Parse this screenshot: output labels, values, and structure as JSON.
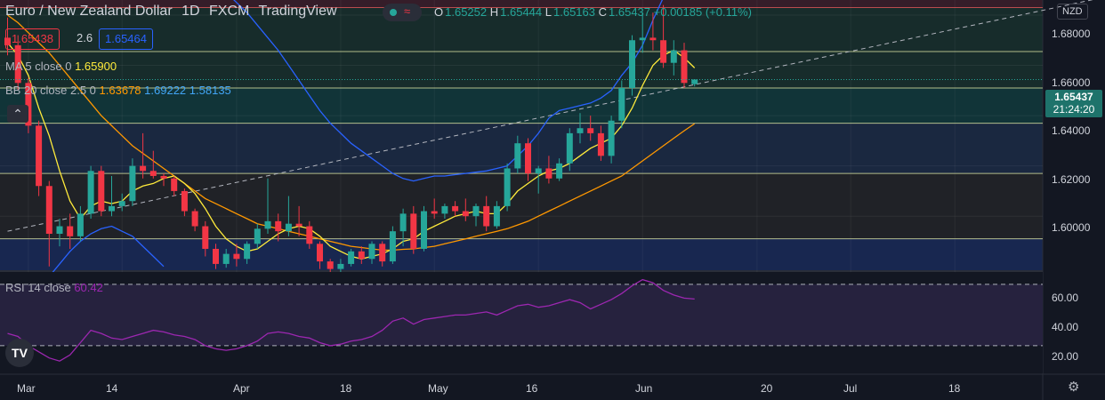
{
  "header": {
    "instrument": "Euro / New Zealand Dollar",
    "timeframe": "1D",
    "broker": "FXCM",
    "platform": "TradingView",
    "ohlc": {
      "o_label": "O",
      "o": "1.65252",
      "h_label": "H",
      "h": "1.65444",
      "l_label": "L",
      "l": "1.65163",
      "c_label": "C",
      "c": "1.65437",
      "change": "+0.00185 (+0.11%)"
    }
  },
  "trade": {
    "sell": "1.65438",
    "spread": "2.6",
    "buy": "1.65464"
  },
  "indicators": {
    "ma_label": "MA 5 close 0",
    "ma_value": "1.65900",
    "bb_label": "BB 20 close 2.5 0",
    "bb_basis": "1.63678",
    "bb_upper": "1.69222",
    "bb_lower": "1.58135",
    "rsi_label": "RSI 14 close",
    "rsi_value": "60.42"
  },
  "price_axis": {
    "currency": "NZD",
    "labels": [
      "1.68000",
      "1.66000",
      "1.64000",
      "1.62000",
      "1.60000"
    ],
    "last_price": "1.65437",
    "countdown": "21:24:20"
  },
  "rsi_axis": {
    "labels": [
      "60.00",
      "40.00",
      "20.00"
    ]
  },
  "time_axis": {
    "labels": [
      "Mar",
      "14",
      "Apr",
      "18",
      "May",
      "16",
      "Jun",
      "20",
      "Jul",
      "18"
    ]
  },
  "logo_text": "TV",
  "colors": {
    "background": "#131722",
    "up": "#26a69a",
    "down": "#f23645",
    "ma": "#ffeb3b",
    "bb_basis": "#ff9800",
    "bb_band": "#2962ff",
    "rsi": "#9c27b0",
    "zone_red": "#3c1e2a",
    "zone_green": "#19302d",
    "zone_teal": "#123a3c",
    "zone_blue": "#1c2c45",
    "zone_gray": "#232428",
    "zone_navy": "#1a2a58"
  },
  "chart_data": {
    "type": "candlestick",
    "title": "Euro / New Zealand Dollar · 1D · FXCM",
    "ylim": [
      1.5785,
      1.686
    ],
    "yticks": [
      1.6,
      1.62,
      1.64,
      1.66,
      1.68
    ],
    "zones": [
      {
        "from": 1.683,
        "to": 1.686,
        "color": "zone_red"
      },
      {
        "from": 1.6655,
        "to": 1.683,
        "color": "zone_green"
      },
      {
        "from": 1.651,
        "to": 1.6655,
        "color": "zone_green"
      },
      {
        "from": 1.637,
        "to": 1.651,
        "color": "zone_teal"
      },
      {
        "from": 1.617,
        "to": 1.637,
        "color": "zone_blue"
      },
      {
        "from": 1.591,
        "to": 1.617,
        "color": "zone_gray"
      },
      {
        "from": 1.5785,
        "to": 1.591,
        "color": "zone_navy"
      }
    ],
    "level_lines": [
      1.683,
      1.6655,
      1.651,
      1.637,
      1.617,
      1.591
    ],
    "trendline": {
      "start": [
        0,
        1.594
      ],
      "end": [
        105,
        1.6868
      ]
    },
    "candles": [
      {
        "o": 1.671,
        "h": 1.679,
        "l": 1.664,
        "c": 1.668
      },
      {
        "o": 1.668,
        "h": 1.672,
        "l": 1.65,
        "c": 1.653
      },
      {
        "o": 1.653,
        "h": 1.655,
        "l": 1.633,
        "c": 1.636
      },
      {
        "o": 1.636,
        "h": 1.638,
        "l": 1.608,
        "c": 1.612
      },
      {
        "o": 1.612,
        "h": 1.614,
        "l": 1.58,
        "c": 1.593
      },
      {
        "o": 1.593,
        "h": 1.599,
        "l": 1.588,
        "c": 1.596
      },
      {
        "o": 1.596,
        "h": 1.601,
        "l": 1.587,
        "c": 1.592
      },
      {
        "o": 1.592,
        "h": 1.604,
        "l": 1.59,
        "c": 1.601
      },
      {
        "o": 1.601,
        "h": 1.62,
        "l": 1.599,
        "c": 1.618
      },
      {
        "o": 1.618,
        "h": 1.62,
        "l": 1.6,
        "c": 1.602
      },
      {
        "o": 1.602,
        "h": 1.616,
        "l": 1.6,
        "c": 1.604
      },
      {
        "o": 1.604,
        "h": 1.609,
        "l": 1.602,
        "c": 1.606
      },
      {
        "o": 1.606,
        "h": 1.623,
        "l": 1.604,
        "c": 1.62
      },
      {
        "o": 1.62,
        "h": 1.633,
        "l": 1.615,
        "c": 1.618
      },
      {
        "o": 1.618,
        "h": 1.626,
        "l": 1.615,
        "c": 1.616
      },
      {
        "o": 1.616,
        "h": 1.617,
        "l": 1.612,
        "c": 1.615
      },
      {
        "o": 1.615,
        "h": 1.616,
        "l": 1.608,
        "c": 1.61
      },
      {
        "o": 1.61,
        "h": 1.611,
        "l": 1.6,
        "c": 1.602
      },
      {
        "o": 1.602,
        "h": 1.603,
        "l": 1.594,
        "c": 1.596
      },
      {
        "o": 1.596,
        "h": 1.598,
        "l": 1.584,
        "c": 1.587
      },
      {
        "o": 1.587,
        "h": 1.589,
        "l": 1.579,
        "c": 1.581
      },
      {
        "o": 1.581,
        "h": 1.587,
        "l": 1.5795,
        "c": 1.585
      },
      {
        "o": 1.585,
        "h": 1.589,
        "l": 1.58,
        "c": 1.583
      },
      {
        "o": 1.583,
        "h": 1.59,
        "l": 1.581,
        "c": 1.589
      },
      {
        "o": 1.589,
        "h": 1.597,
        "l": 1.587,
        "c": 1.595
      },
      {
        "o": 1.595,
        "h": 1.615,
        "l": 1.593,
        "c": 1.598
      },
      {
        "o": 1.598,
        "h": 1.601,
        "l": 1.59,
        "c": 1.594
      },
      {
        "o": 1.594,
        "h": 1.608,
        "l": 1.592,
        "c": 1.597
      },
      {
        "o": 1.597,
        "h": 1.604,
        "l": 1.592,
        "c": 1.596
      },
      {
        "o": 1.596,
        "h": 1.598,
        "l": 1.587,
        "c": 1.589
      },
      {
        "o": 1.589,
        "h": 1.59,
        "l": 1.579,
        "c": 1.582
      },
      {
        "o": 1.582,
        "h": 1.583,
        "l": 1.576,
        "c": 1.579
      },
      {
        "o": 1.579,
        "h": 1.583,
        "l": 1.577,
        "c": 1.581
      },
      {
        "o": 1.581,
        "h": 1.587,
        "l": 1.58,
        "c": 1.586
      },
      {
        "o": 1.586,
        "h": 1.588,
        "l": 1.581,
        "c": 1.583
      },
      {
        "o": 1.583,
        "h": 1.59,
        "l": 1.581,
        "c": 1.589
      },
      {
        "o": 1.589,
        "h": 1.59,
        "l": 1.58,
        "c": 1.582
      },
      {
        "o": 1.582,
        "h": 1.596,
        "l": 1.581,
        "c": 1.594
      },
      {
        "o": 1.594,
        "h": 1.603,
        "l": 1.588,
        "c": 1.601
      },
      {
        "o": 1.601,
        "h": 1.604,
        "l": 1.585,
        "c": 1.587
      },
      {
        "o": 1.587,
        "h": 1.604,
        "l": 1.586,
        "c": 1.602
      },
      {
        "o": 1.602,
        "h": 1.607,
        "l": 1.599,
        "c": 1.601
      },
      {
        "o": 1.601,
        "h": 1.605,
        "l": 1.599,
        "c": 1.604
      },
      {
        "o": 1.604,
        "h": 1.606,
        "l": 1.6,
        "c": 1.602
      },
      {
        "o": 1.602,
        "h": 1.607,
        "l": 1.598,
        "c": 1.6
      },
      {
        "o": 1.6,
        "h": 1.605,
        "l": 1.596,
        "c": 1.604
      },
      {
        "o": 1.604,
        "h": 1.608,
        "l": 1.594,
        "c": 1.596
      },
      {
        "o": 1.596,
        "h": 1.606,
        "l": 1.595,
        "c": 1.604
      },
      {
        "o": 1.604,
        "h": 1.621,
        "l": 1.602,
        "c": 1.619
      },
      {
        "o": 1.619,
        "h": 1.632,
        "l": 1.617,
        "c": 1.629
      },
      {
        "o": 1.629,
        "h": 1.631,
        "l": 1.614,
        "c": 1.617
      },
      {
        "o": 1.617,
        "h": 1.62,
        "l": 1.609,
        "c": 1.619
      },
      {
        "o": 1.619,
        "h": 1.624,
        "l": 1.613,
        "c": 1.615
      },
      {
        "o": 1.615,
        "h": 1.623,
        "l": 1.614,
        "c": 1.621
      },
      {
        "o": 1.621,
        "h": 1.635,
        "l": 1.618,
        "c": 1.633
      },
      {
        "o": 1.633,
        "h": 1.641,
        "l": 1.629,
        "c": 1.635
      },
      {
        "o": 1.635,
        "h": 1.64,
        "l": 1.63,
        "c": 1.633
      },
      {
        "o": 1.633,
        "h": 1.636,
        "l": 1.622,
        "c": 1.624
      },
      {
        "o": 1.624,
        "h": 1.64,
        "l": 1.621,
        "c": 1.638
      },
      {
        "o": 1.638,
        "h": 1.654,
        "l": 1.635,
        "c": 1.651
      },
      {
        "o": 1.651,
        "h": 1.672,
        "l": 1.648,
        "c": 1.67
      },
      {
        "o": 1.67,
        "h": 1.681,
        "l": 1.665,
        "c": 1.671
      },
      {
        "o": 1.671,
        "h": 1.681,
        "l": 1.666,
        "c": 1.67
      },
      {
        "o": 1.67,
        "h": 1.684,
        "l": 1.659,
        "c": 1.661
      },
      {
        "o": 1.661,
        "h": 1.67,
        "l": 1.656,
        "c": 1.666
      },
      {
        "o": 1.666,
        "h": 1.669,
        "l": 1.651,
        "c": 1.653
      },
      {
        "o": 1.65252,
        "h": 1.65444,
        "l": 1.65163,
        "c": 1.65437
      }
    ],
    "ma5": [
      1.669,
      1.664,
      1.656,
      1.643,
      1.632,
      1.618,
      1.606,
      1.599,
      1.604,
      1.606,
      1.605,
      1.606,
      1.61,
      1.612,
      1.613,
      1.615,
      1.616,
      1.613,
      1.609,
      1.603,
      1.596,
      1.591,
      1.588,
      1.586,
      1.587,
      1.59,
      1.593,
      1.595,
      1.596,
      1.595,
      1.592,
      1.588,
      1.586,
      1.584,
      1.583,
      1.584,
      1.585,
      1.587,
      1.59,
      1.591,
      1.594,
      1.596,
      1.598,
      1.6,
      1.601,
      1.602,
      1.601,
      1.601,
      1.605,
      1.61,
      1.613,
      1.616,
      1.618,
      1.619,
      1.621,
      1.624,
      1.627,
      1.629,
      1.631,
      1.636,
      1.643,
      1.652,
      1.66,
      1.664,
      1.666,
      1.663,
      1.659
    ],
    "bb_basis": [
      1.68,
      1.677,
      1.673,
      1.669,
      1.665,
      1.66,
      1.655,
      1.65,
      1.645,
      1.64,
      1.636,
      1.632,
      1.628,
      1.625,
      1.622,
      1.619,
      1.616,
      1.613,
      1.61,
      1.607,
      1.605,
      1.603,
      1.601,
      1.599,
      1.597,
      1.596,
      1.595,
      1.594,
      1.593,
      1.592,
      1.591,
      1.59,
      1.589,
      1.588,
      1.5875,
      1.587,
      1.5865,
      1.5865,
      1.5868,
      1.587,
      1.5875,
      1.588,
      1.589,
      1.59,
      1.591,
      1.592,
      1.593,
      1.594,
      1.595,
      1.5965,
      1.598,
      1.6,
      1.602,
      1.604,
      1.606,
      1.608,
      1.61,
      1.612,
      1.614,
      1.616,
      1.619,
      1.622,
      1.625,
      1.628,
      1.631,
      1.634,
      1.6368
    ],
    "bb_upper": [
      1.695,
      1.696,
      1.697,
      1.696,
      1.695,
      1.693,
      1.691,
      1.689,
      1.688,
      1.689,
      1.692,
      1.694,
      1.694,
      1.692,
      1.689,
      1.685,
      1.681,
      1.676,
      1.671,
      1.666,
      1.66,
      1.654,
      1.648,
      1.642,
      1.637,
      1.633,
      1.629,
      1.626,
      1.623,
      1.62,
      1.617,
      1.615,
      1.614,
      1.615,
      1.616,
      1.616,
      1.6165,
      1.617,
      1.6175,
      1.618,
      1.619,
      1.62,
      1.624,
      1.628,
      1.633,
      1.639,
      1.642,
      1.643,
      1.644,
      1.645,
      1.647,
      1.65,
      1.656,
      1.661,
      1.668,
      1.678,
      1.687,
      1.69,
      1.691,
      1.6922
    ],
    "bb_upper_offset": 7,
    "bb_lower": [
      1.555,
      1.56,
      1.566,
      1.571,
      1.576,
      1.581,
      1.586,
      1.59,
      1.593,
      1.595,
      1.596,
      1.594,
      1.592,
      1.588,
      1.584,
      1.58
    ],
    "rsi": {
      "ylim": [
        12,
        78
      ],
      "levels": [
        70,
        30
      ],
      "yticks": [
        20,
        40,
        60
      ],
      "values": [
        38,
        36,
        30,
        26,
        22,
        20,
        24,
        32,
        40,
        38,
        35,
        34,
        36,
        38,
        40,
        39,
        37,
        36,
        34,
        30,
        28,
        27,
        28,
        30,
        33,
        38,
        39,
        38,
        36,
        35,
        32,
        30,
        31,
        33,
        34,
        36,
        40,
        46,
        48,
        44,
        47,
        48,
        49,
        50,
        50,
        51,
        52,
        50,
        53,
        56,
        57,
        55,
        56,
        58,
        60,
        58,
        54,
        57,
        60,
        64,
        69,
        73,
        71,
        66,
        63,
        61,
        60.42
      ]
    },
    "time_labels": [
      {
        "i": 2,
        "label": "Mar"
      },
      {
        "i": 11,
        "label": "14"
      },
      {
        "i": 22,
        "label": "Apr"
      },
      {
        "i": 32,
        "label": "18"
      },
      {
        "i": 41,
        "label": "May"
      },
      {
        "i": 51,
        "label": "16"
      },
      {
        "i": 61,
        "label": "Jun"
      },
      {
        "i": 72,
        "label": "20"
      },
      {
        "i": 81,
        "label": "Jul"
      },
      {
        "i": 91,
        "label": "18"
      }
    ]
  }
}
